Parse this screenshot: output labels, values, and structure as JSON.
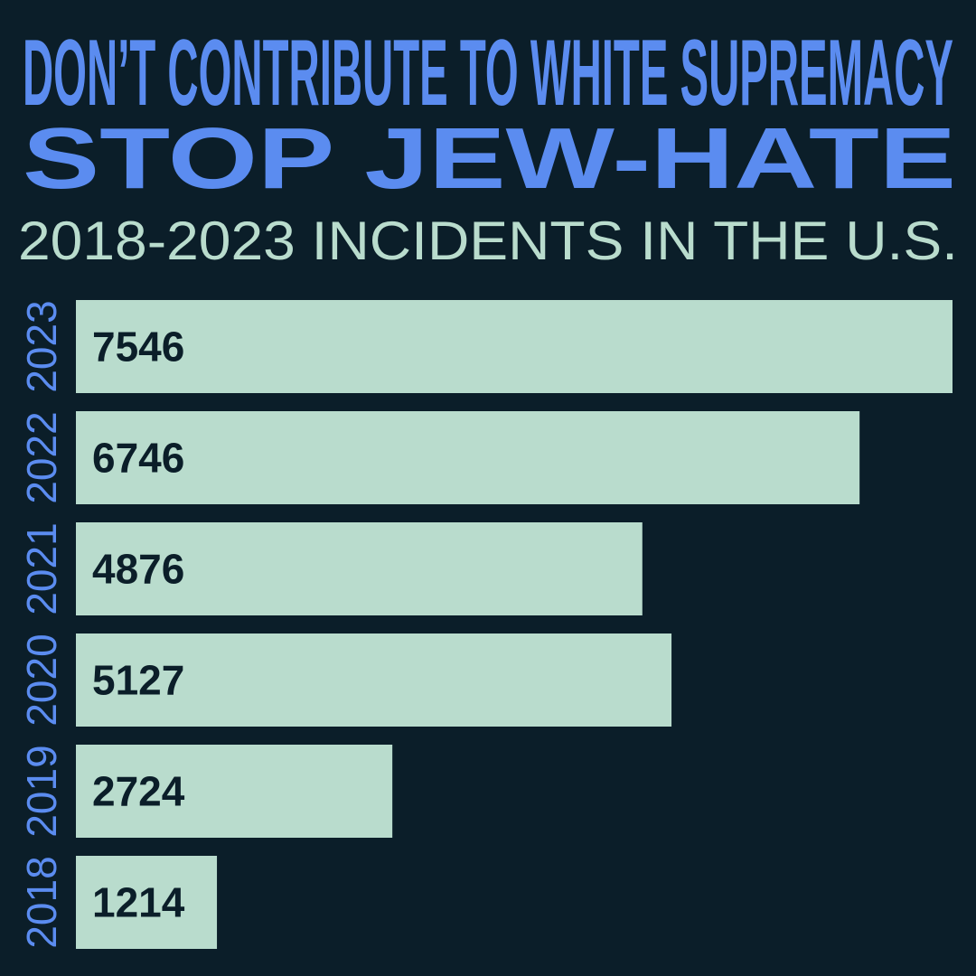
{
  "chart_data": {
    "type": "bar",
    "orientation": "horizontal",
    "kicker": "DON’T CONTRIBUTE TO WHITE SUPREMACY",
    "title": "STOP JEW-HATE",
    "subtitle": "2018-2023 INCIDENTS IN THE U.S.",
    "categories": [
      "2023",
      "2022",
      "2021",
      "2020",
      "2019",
      "2018"
    ],
    "values": [
      7546,
      6746,
      4876,
      5127,
      2724,
      1214
    ],
    "color": "#b9dccd",
    "category_color": "#5b8cf0",
    "value_label_color": "#0b1e29"
  }
}
